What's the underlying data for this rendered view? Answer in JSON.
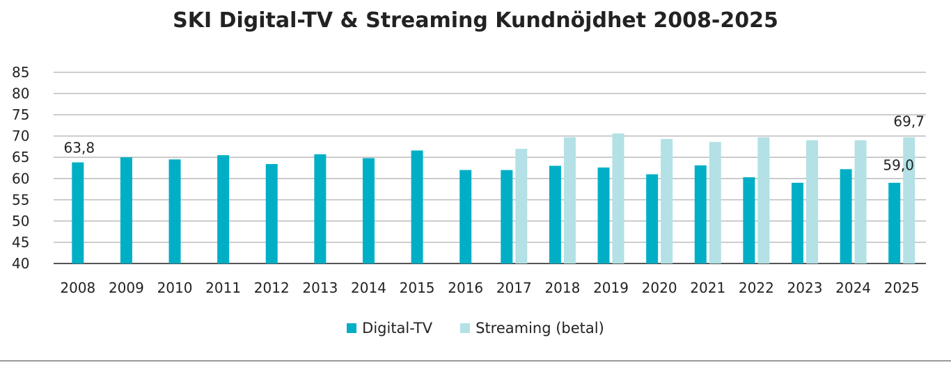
{
  "chart_data": {
    "type": "bar",
    "title": "SKI Digital-TV & Streaming Kundnöjdhet 2008-2025",
    "xlabel": "",
    "ylabel": "",
    "ylim": [
      40,
      85
    ],
    "yticks": [
      "40",
      "45",
      "50",
      "55",
      "60",
      "65",
      "70",
      "75",
      "80",
      "85"
    ],
    "grid": true,
    "legend_position": "bottom",
    "categories": [
      "2008",
      "2009",
      "2010",
      "2011",
      "2012",
      "2013",
      "2014",
      "2015",
      "2016",
      "2017",
      "2018",
      "2019",
      "2020",
      "2021",
      "2022",
      "2023",
      "2024",
      "2025"
    ],
    "series": [
      {
        "name": "Digital-TV",
        "color": "#00afc6",
        "values": [
          63.8,
          65.0,
          64.5,
          65.5,
          63.4,
          65.7,
          64.8,
          66.6,
          62.0,
          62.0,
          63.0,
          62.6,
          61.0,
          63.1,
          60.3,
          59.0,
          62.2,
          59.0
        ]
      },
      {
        "name": "Streaming (betal)",
        "color": "#b3e1e5",
        "values": [
          null,
          null,
          null,
          null,
          null,
          null,
          null,
          null,
          null,
          67.0,
          69.7,
          70.6,
          69.3,
          68.6,
          69.7,
          69.0,
          69.0,
          69.7
        ]
      }
    ],
    "data_labels": [
      {
        "series": 0,
        "category": "2008",
        "text": "63,8"
      },
      {
        "series": 0,
        "category": "2025",
        "text": "59,0"
      },
      {
        "series": 1,
        "category": "2025",
        "text": "69,7"
      }
    ]
  }
}
